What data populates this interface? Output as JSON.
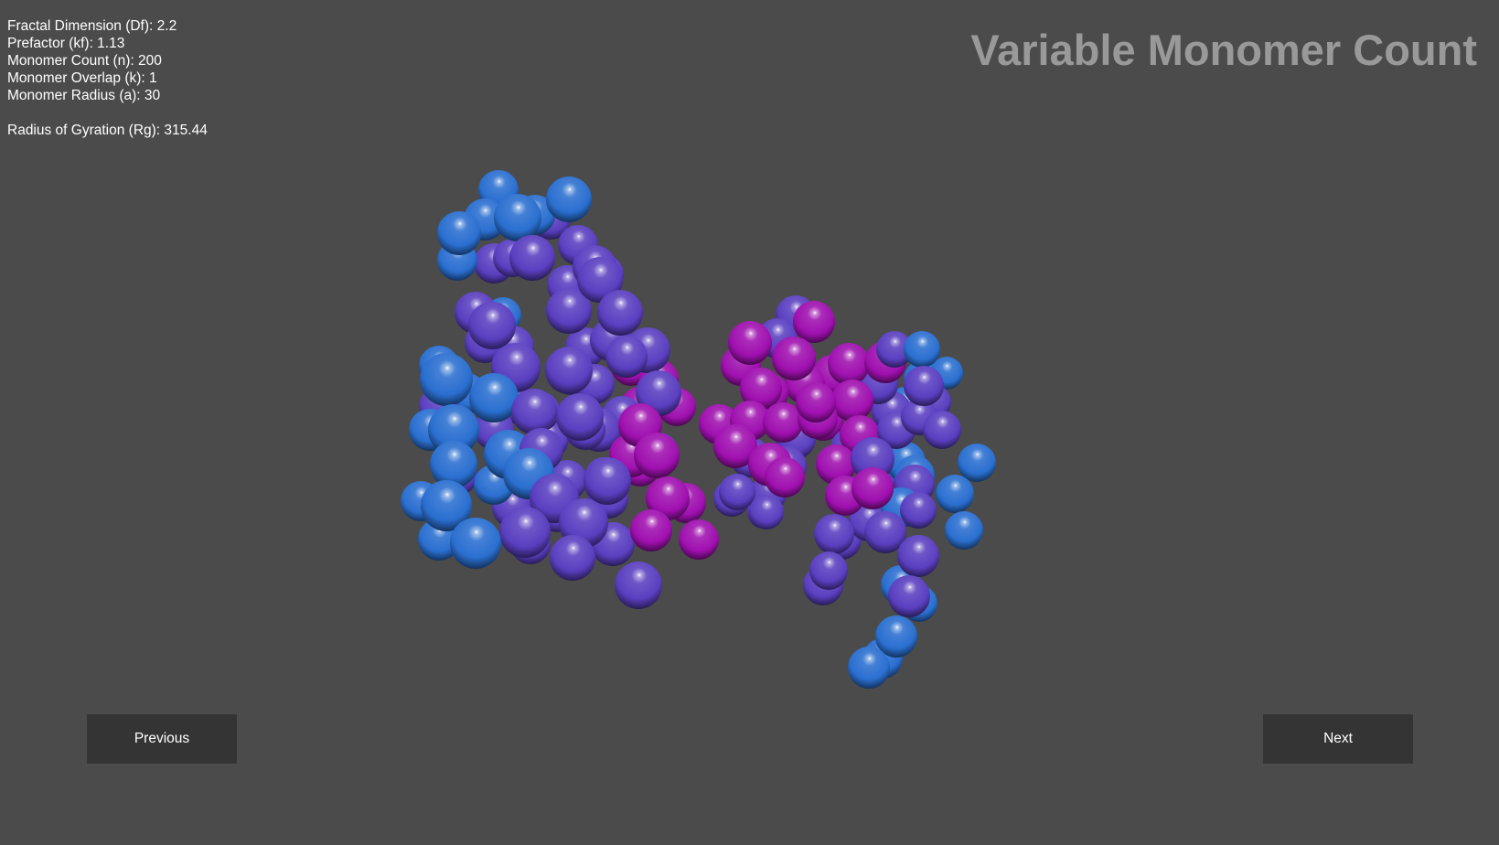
{
  "params": {
    "fractal_dimension": "Fractal Dimension (Df): 2.2",
    "prefactor": "Prefactor (kf): 1.13",
    "monomer_count": "Monomer Count (n): 200",
    "monomer_overlap": "Monomer Overlap (k): 1",
    "monomer_radius": "Monomer Radius (a): 30",
    "radius_of_gyration": "Radius of Gyration (Rg): 315.44"
  },
  "title": "Variable Monomer Count",
  "nav": {
    "previous_label": "Previous",
    "next_label": "Next"
  },
  "colors": {
    "background": "#4b4b4b",
    "title": "#999999",
    "button_bg": "#343434",
    "sphere_blue": "#2a6fd0",
    "sphere_violet": "#5a3fc0",
    "sphere_magenta": "#a010b0"
  }
}
